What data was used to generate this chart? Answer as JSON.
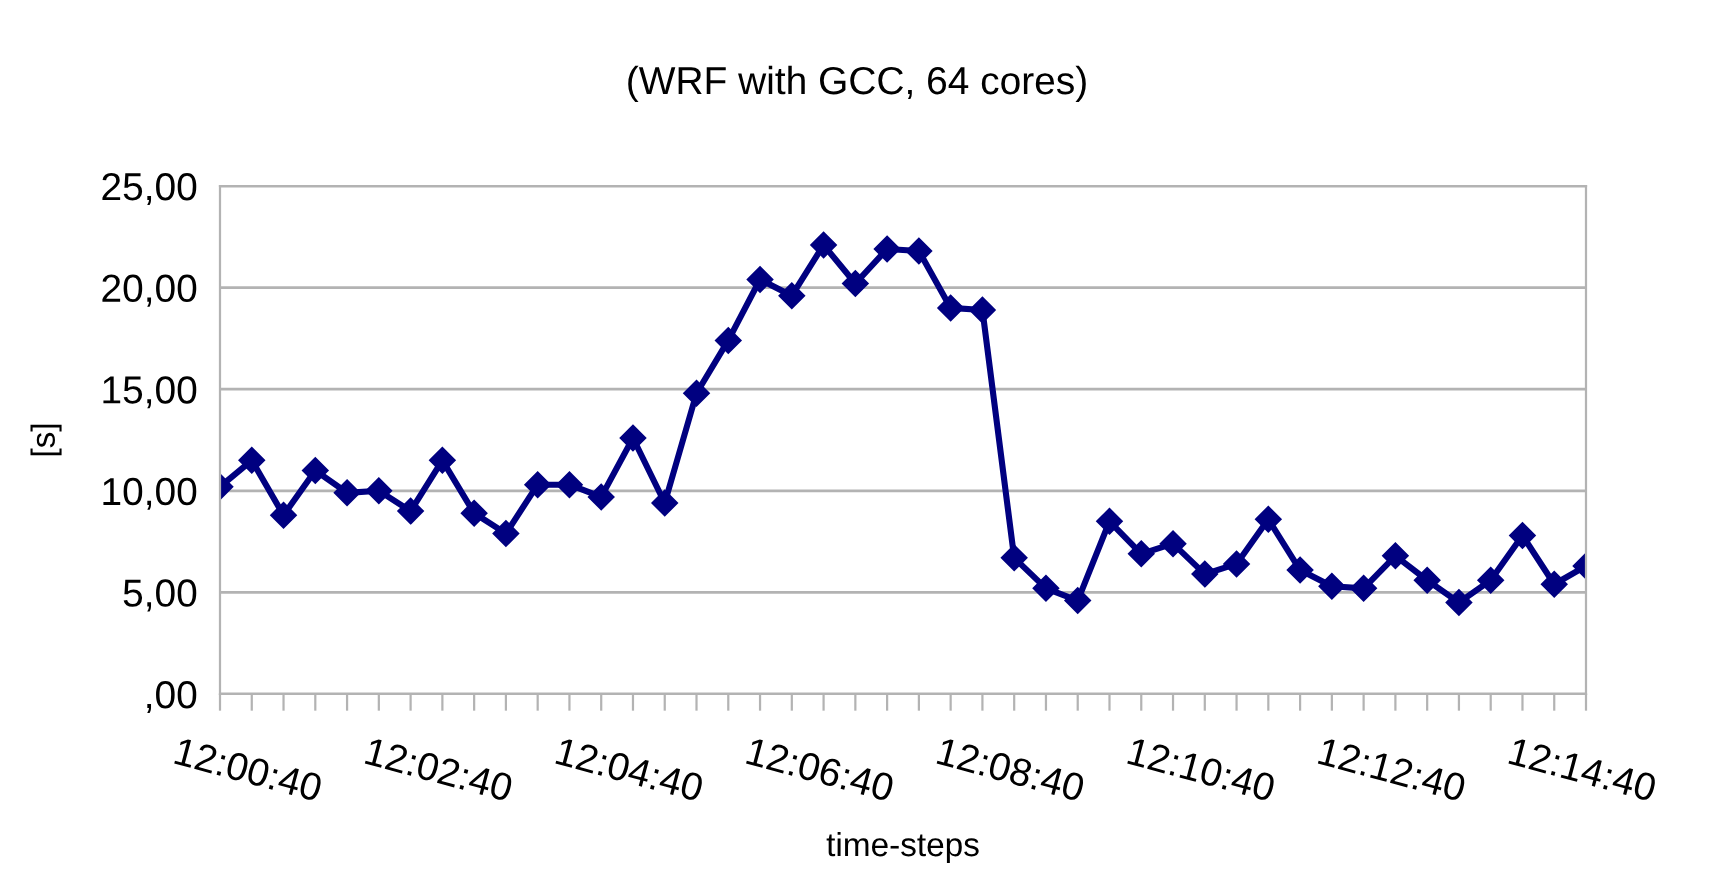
{
  "chart_data": {
    "type": "line",
    "title": "(WRF with GCC, 64 cores)",
    "xlabel": "time-steps",
    "ylabel": "[s]",
    "categories": [
      null,
      "12:00:40",
      null,
      null,
      null,
      null,
      null,
      "12:02:40",
      null,
      null,
      null,
      null,
      null,
      "12:04:40",
      null,
      null,
      null,
      null,
      null,
      "12:06:40",
      null,
      null,
      null,
      null,
      null,
      "12:08:40",
      null,
      null,
      null,
      null,
      null,
      "12:10:40",
      null,
      null,
      null,
      null,
      null,
      "12:12:40",
      null,
      null,
      null,
      null,
      null,
      "12:14:40"
    ],
    "series": [
      {
        "color": "#000080",
        "values": [
          10.2,
          11.5,
          8.8,
          11.0,
          9.9,
          10.0,
          9.0,
          11.5,
          8.9,
          7.9,
          10.3,
          10.3,
          9.7,
          12.6,
          9.4,
          14.8,
          17.4,
          20.4,
          19.6,
          22.1,
          20.2,
          21.9,
          21.8,
          19.0,
          18.9,
          6.7,
          5.2,
          4.6,
          8.5,
          6.9,
          7.4,
          5.9,
          6.4,
          8.6,
          6.1,
          5.3,
          5.2,
          6.8,
          5.6,
          4.5,
          5.6,
          7.8,
          5.4,
          6.3
        ]
      }
    ],
    "ylim": [
      0,
      25
    ],
    "yticks": [
      {
        "value": 0,
        "label": ",00"
      },
      {
        "value": 5,
        "label": "5,00"
      },
      {
        "value": 10,
        "label": "10,00"
      },
      {
        "value": 15,
        "label": "15,00"
      },
      {
        "value": 20,
        "label": "20,00"
      },
      {
        "value": 25,
        "label": "25,00"
      }
    ],
    "grid": "y",
    "marker": "diamond",
    "line_style": "solid",
    "legend": false
  }
}
